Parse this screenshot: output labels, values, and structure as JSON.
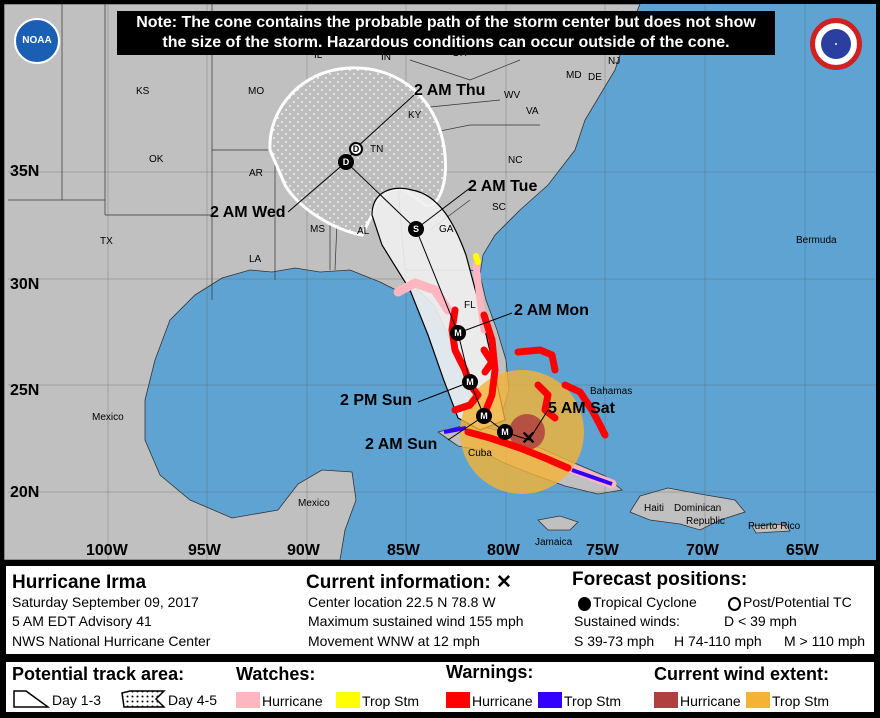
{
  "note": {
    "line1": "Note: The cone contains the probable path of the storm center but does not show",
    "line2": "the size of the storm. Hazardous conditions can occur outside of the cone."
  },
  "logos": {
    "left": "NOAA",
    "right": "NATIONAL WEATHER SERVICE"
  },
  "map": {
    "lat_labels": [
      "35N",
      "30N",
      "25N",
      "20N"
    ],
    "lon_labels": [
      "100W",
      "95W",
      "90W",
      "85W",
      "80W",
      "75W",
      "70W",
      "65W"
    ],
    "places": {
      "ks": "KS",
      "mo": "MO",
      "ok": "OK",
      "ar": "AR",
      "tx": "TX",
      "la": "LA",
      "ms": "MS",
      "al": "AL",
      "ga": "GA",
      "tn": "TN",
      "ky": "KY",
      "nc": "NC",
      "sc": "SC",
      "va": "VA",
      "wv": "WV",
      "in": "IN",
      "oh": "OH",
      "il": "IL",
      "nj": "NJ",
      "de": "DE",
      "md": "MD",
      "fl": "FL",
      "cuba": "Cuba",
      "bahamas": "Bahamas",
      "mexico1": "Mexico",
      "mexico2": "Mexico",
      "jamaica": "Jamaica",
      "haiti": "Haiti",
      "dominican": "Dominican",
      "republic": "Republic",
      "puerto_rico": "Puerto Rico",
      "bermuda": "Bermuda"
    },
    "forecast_labels": {
      "thu": "2 AM Thu",
      "wed": "2 AM Wed",
      "tue": "2 AM Tue",
      "mon": "2 AM Mon",
      "sun_pm": "2 PM Sun",
      "sun_am": "2 AM Sun",
      "sat": "5 AM Sat"
    },
    "points": {
      "d1": "D",
      "d2": "D",
      "s": "S",
      "m1": "M",
      "m2": "M",
      "m3": "M",
      "m4": "M",
      "current": "✕"
    }
  },
  "info": {
    "storm_name": "Hurricane Irma",
    "date": "Saturday September 09, 2017",
    "advisory": "5 AM EDT Advisory 41",
    "center": "NWS National Hurricane Center",
    "current_title": "Current information: ✕",
    "location": "Center location 22.5 N 78.8 W",
    "max_wind": "Maximum sustained wind 155 mph",
    "movement": "Movement WNW at 12 mph",
    "forecast_title": "Forecast positions:",
    "tropical_cyclone": "Tropical Cyclone",
    "post_tc": "Post/Potential TC",
    "sustained": "Sustained winds:",
    "d_range": "D < 39 mph",
    "s_range": "S 39-73 mph",
    "h_range": "H 74-110 mph",
    "m_range": "M > 110 mph"
  },
  "legend": {
    "track_title": "Potential track area:",
    "day13": "Day 1-3",
    "day45": "Day 4-5",
    "watches_title": "Watches:",
    "warnings_title": "Warnings:",
    "wind_title": "Current wind extent:",
    "hurricane": "Hurricane",
    "trop_stm": "Trop Stm"
  },
  "colors": {
    "land": "#c0c0c0",
    "water": "#5fa3d3",
    "hurricane_watch": "#ffb6c1",
    "ts_watch": "#ffff00",
    "hurricane_warning": "#ff0000",
    "ts_warning": "#3300ff",
    "hurricane_wind": "#b04040",
    "ts_wind": "#f5b335"
  }
}
